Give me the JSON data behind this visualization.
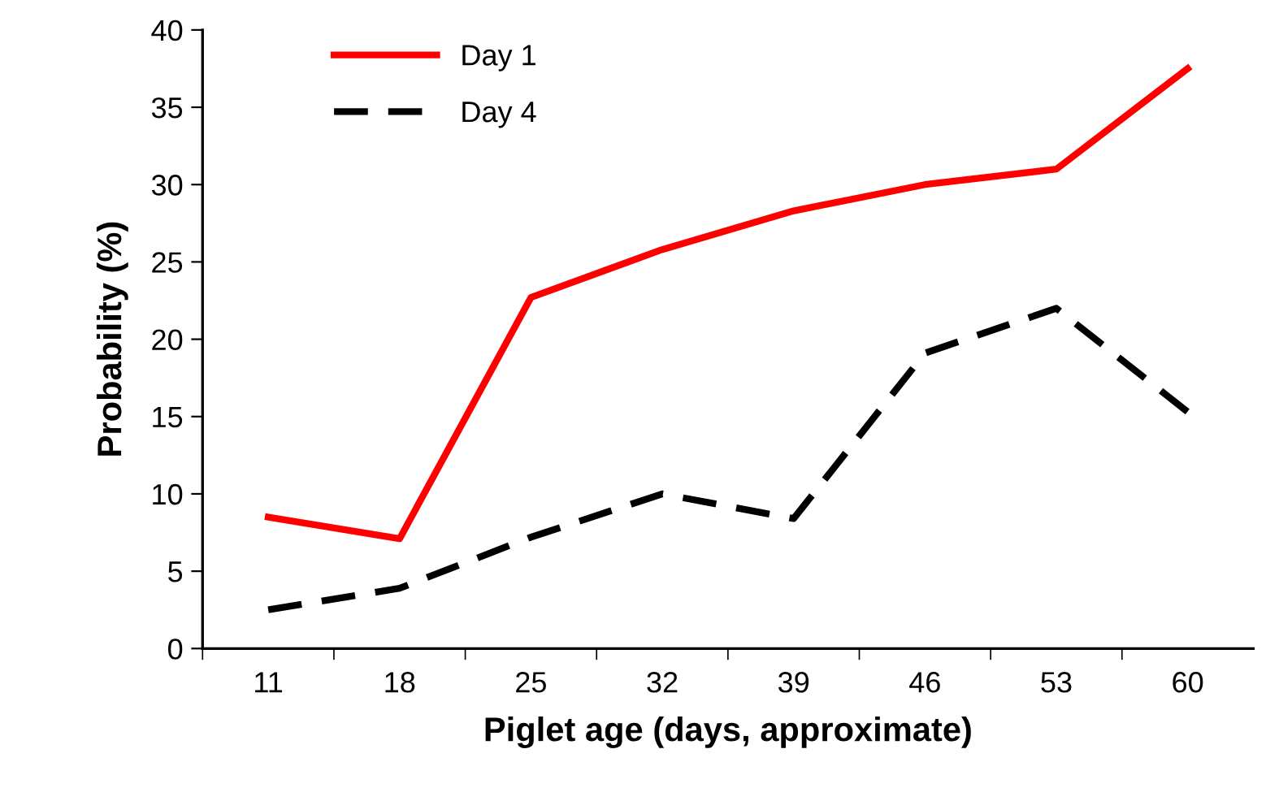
{
  "chart_data": {
    "type": "line",
    "xlabel": "Piglet age (days, approximate)",
    "ylabel": "Probability (%)",
    "categories": [
      "11",
      "18",
      "25",
      "32",
      "39",
      "46",
      "53",
      "60"
    ],
    "series": [
      {
        "name": "Day 1",
        "color": "#ff0000",
        "line_style": "solid",
        "values": [
          8.5,
          7.1,
          22.7,
          25.8,
          28.3,
          30.0,
          31.0,
          37.5
        ]
      },
      {
        "name": "Day 4",
        "color": "#000000",
        "line_style": "dashed",
        "values": [
          2.5,
          3.9,
          7.2,
          10.0,
          8.4,
          19.1,
          22.0,
          15.3
        ]
      }
    ],
    "ylim": [
      0,
      40
    ],
    "yticks": [
      0,
      5,
      10,
      15,
      20,
      25,
      30,
      35,
      40
    ],
    "grid": false,
    "legend": "top left",
    "marker": "none"
  }
}
